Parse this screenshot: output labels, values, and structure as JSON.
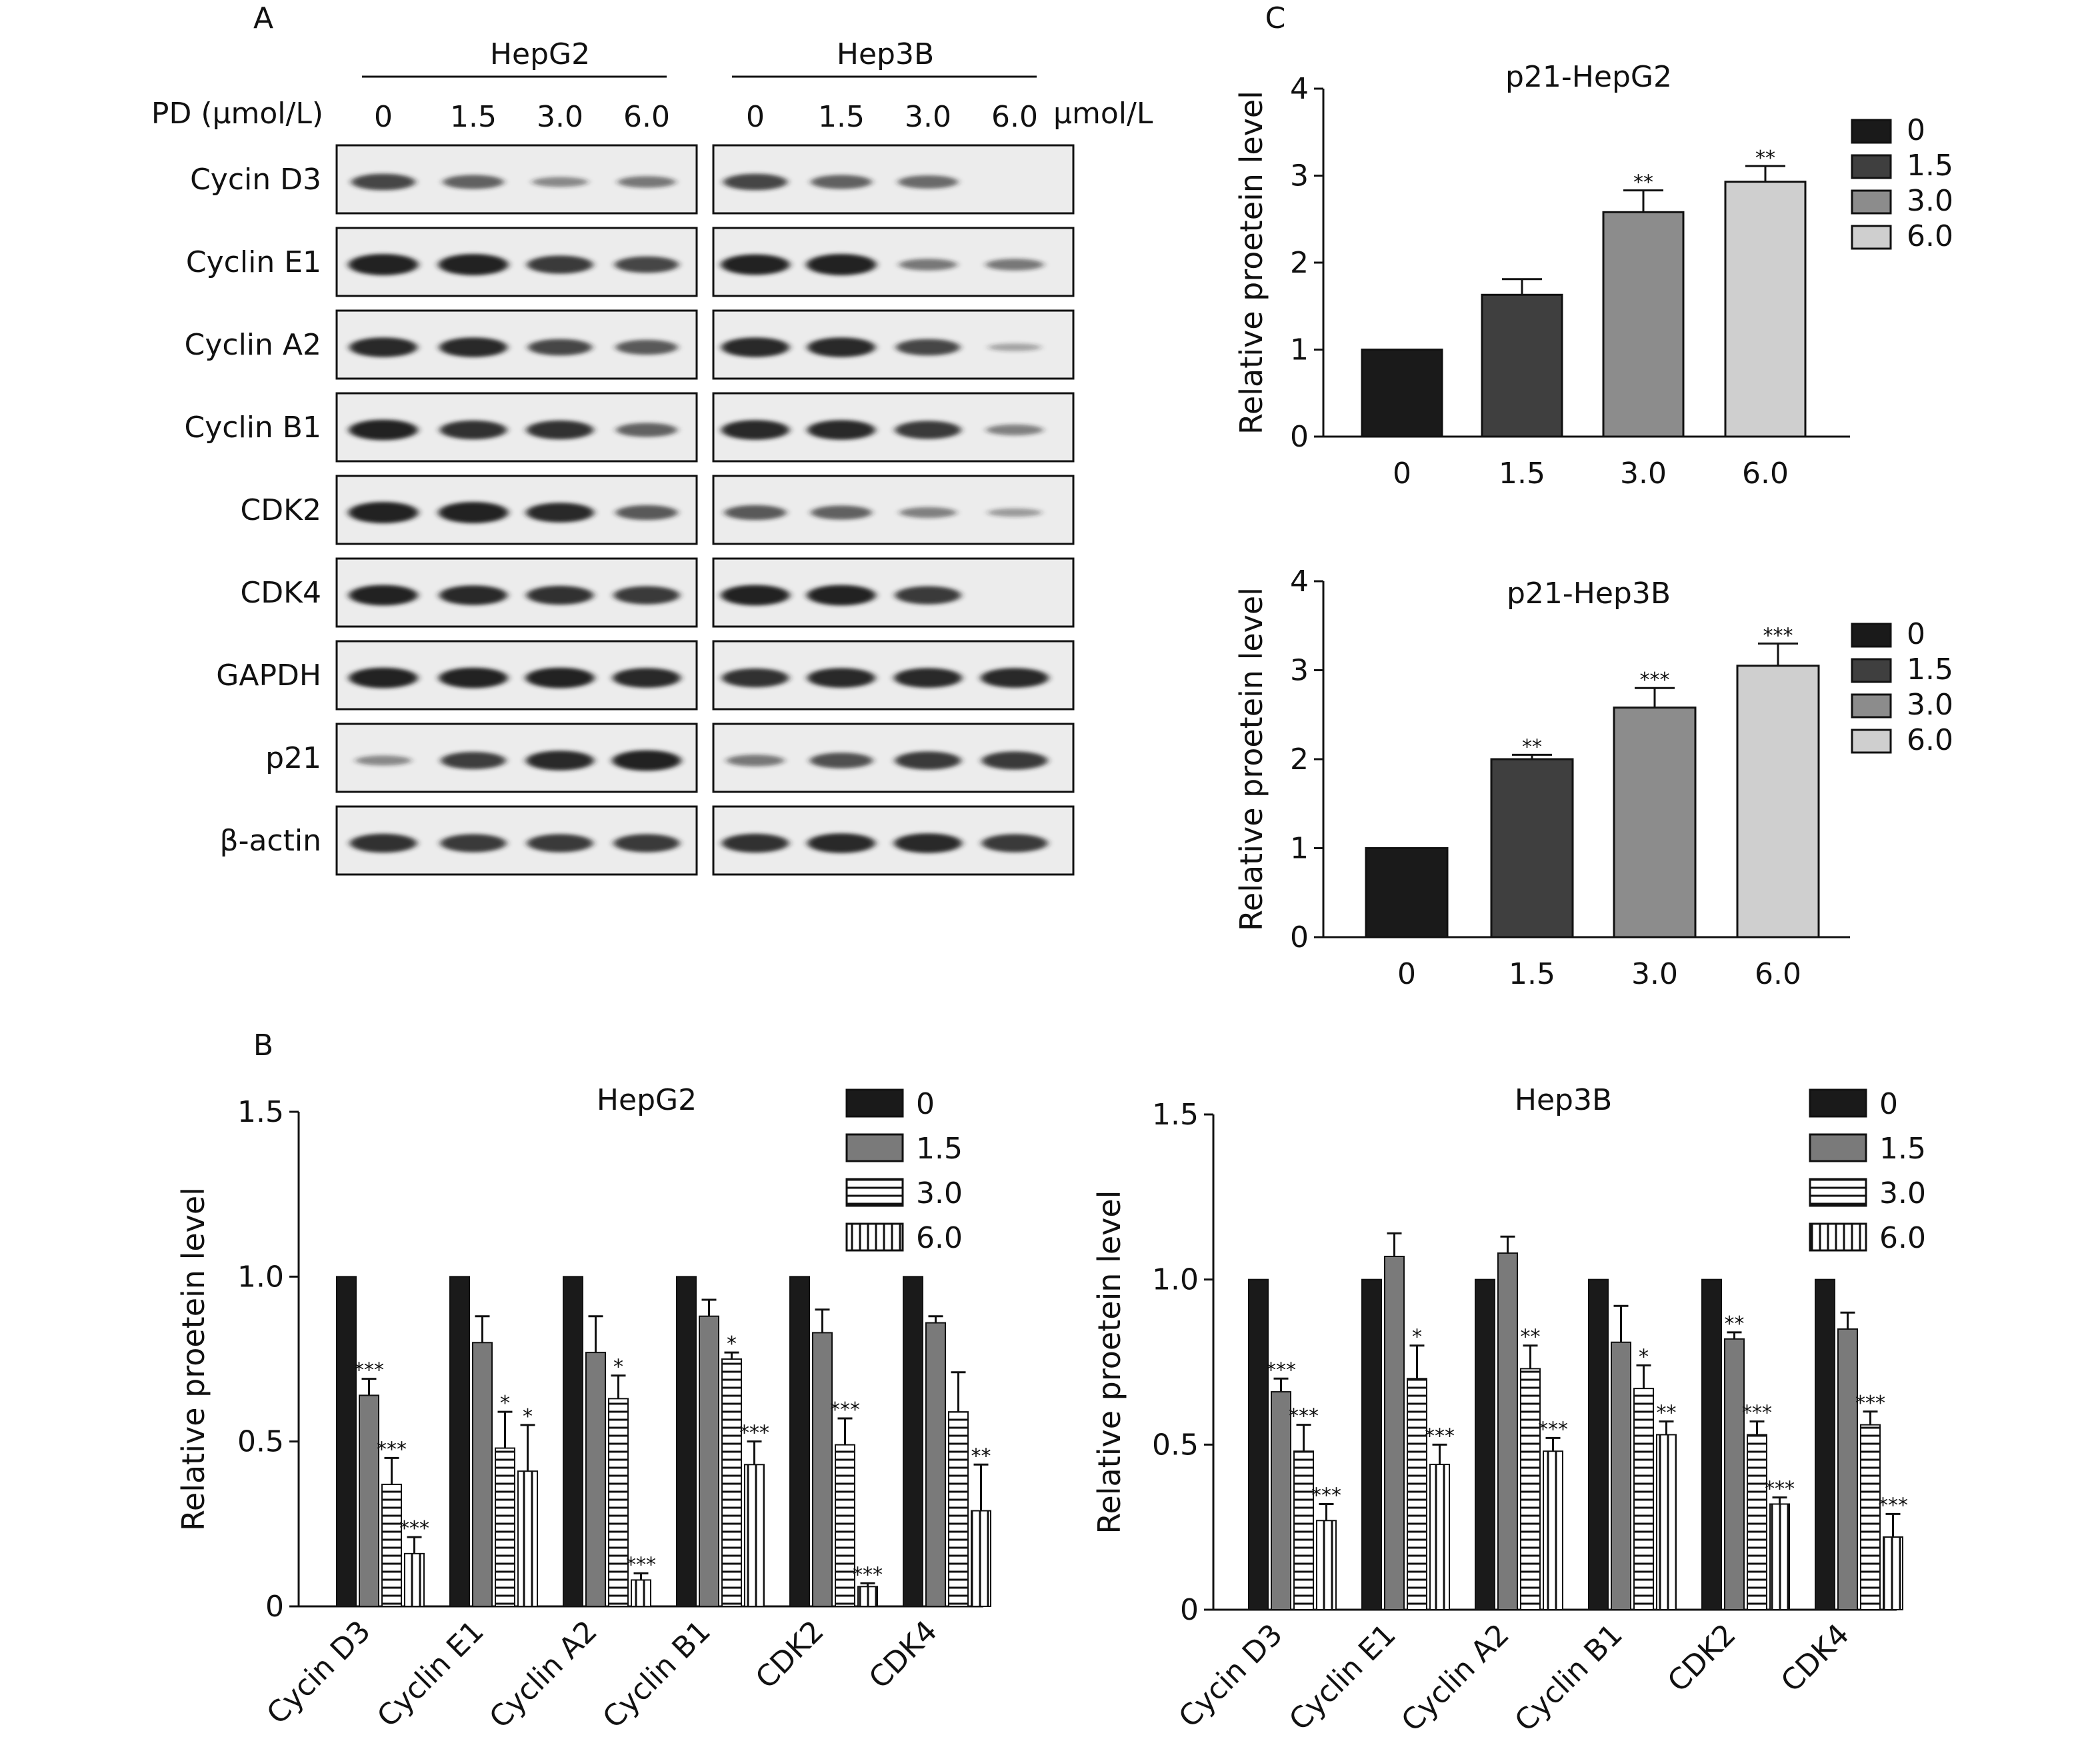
{
  "figure": {
    "panel_a_label": "A",
    "panel_b_label": "B",
    "panel_c_label": "C"
  },
  "colors": {
    "d0": "#1a1a1a",
    "d1_5_b": "#7a7a7a",
    "d1_5_c": "#3f3f3f",
    "d3_0_c": "#8c8c8c",
    "d6_0_c": "#cfcfcf",
    "axis": "#111111",
    "blot_band": "#222222"
  },
  "western_blot": {
    "pd_label": "PD (μmol/L)",
    "unit_label": "μmol/L",
    "groups": [
      {
        "name": "HepG2",
        "doses": [
          "0",
          "1.5",
          "3.0",
          "6.0"
        ]
      },
      {
        "name": "Hep3B",
        "doses": [
          "0",
          "1.5",
          "3.0",
          "6.0"
        ]
      }
    ],
    "rows": [
      {
        "label": "Cycin D3",
        "hepg2": [
          0.7,
          0.55,
          0.3,
          0.4
        ],
        "hep3b": [
          0.7,
          0.55,
          0.5,
          0.0
        ]
      },
      {
        "label": "Cyclin E1",
        "hepg2": [
          1.0,
          1.0,
          0.8,
          0.7
        ],
        "hep3b": [
          0.95,
          1.0,
          0.4,
          0.4
        ]
      },
      {
        "label": "Cyclin A2",
        "hepg2": [
          0.9,
          0.9,
          0.7,
          0.6
        ],
        "hep3b": [
          0.9,
          0.9,
          0.7,
          0.15
        ]
      },
      {
        "label": "Cyclin B1",
        "hepg2": [
          0.95,
          0.85,
          0.85,
          0.55
        ],
        "hep3b": [
          0.9,
          0.9,
          0.8,
          0.35
        ]
      },
      {
        "label": "CDK2",
        "hepg2": [
          1.0,
          1.0,
          0.9,
          0.6
        ],
        "hep3b": [
          0.6,
          0.55,
          0.35,
          0.2
        ]
      },
      {
        "label": "CDK4",
        "hepg2": [
          0.95,
          0.9,
          0.85,
          0.8
        ],
        "hep3b": [
          0.95,
          0.95,
          0.8,
          0.0
        ]
      },
      {
        "label": "GAPDH",
        "hepg2": [
          0.95,
          0.95,
          0.95,
          0.9
        ],
        "hep3b": [
          0.85,
          0.9,
          0.9,
          0.9
        ]
      },
      {
        "label": "p21",
        "hepg2": [
          0.3,
          0.75,
          0.9,
          0.95
        ],
        "hep3b": [
          0.4,
          0.65,
          0.8,
          0.8
        ]
      },
      {
        "label": "β-actin",
        "hepg2": [
          0.85,
          0.8,
          0.8,
          0.8
        ],
        "hep3b": [
          0.85,
          0.9,
          0.9,
          0.8
        ]
      }
    ]
  },
  "chart_data": [
    {
      "id": "p21-hepg2",
      "type": "bar",
      "title": "p21-HepG2",
      "ylabel": "Relative proetein level",
      "ylim": [
        0,
        4
      ],
      "yticks": [
        "0",
        "1",
        "2",
        "3",
        "4"
      ],
      "categories": [
        "0",
        "1.5",
        "3.0",
        "6.0"
      ],
      "values": [
        1.0,
        1.63,
        2.58,
        2.93
      ],
      "errors": [
        0,
        0.18,
        0.25,
        0.18
      ],
      "significance": [
        "",
        "",
        "**",
        "**"
      ],
      "legend": [
        "0",
        "1.5",
        "3.0",
        "6.0"
      ],
      "legend_position": "right"
    },
    {
      "id": "p21-hep3b",
      "type": "bar",
      "title": "p21-Hep3B",
      "ylabel": "Relative proetein level",
      "ylim": [
        0,
        4
      ],
      "yticks": [
        "0",
        "1",
        "2",
        "3",
        "4"
      ],
      "categories": [
        "0",
        "1.5",
        "3.0",
        "6.0"
      ],
      "values": [
        1.0,
        2.0,
        2.58,
        3.05
      ],
      "errors": [
        0,
        0.05,
        0.22,
        0.25
      ],
      "significance": [
        "",
        "**",
        "***",
        "***"
      ],
      "legend": [
        "0",
        "1.5",
        "3.0",
        "6.0"
      ],
      "legend_position": "right"
    },
    {
      "id": "b-hepg2",
      "type": "bar",
      "title": "HepG2",
      "ylabel": "Relative proetein level",
      "ylim": [
        0,
        1.5
      ],
      "yticks": [
        "0",
        "0.5",
        "1.0",
        "1.5"
      ],
      "categories": [
        "Cycin D3",
        "Cyclin E1",
        "Cyclin A2",
        "Cyclin B1",
        "CDK2",
        "CDK4"
      ],
      "legend_position": "top-right",
      "series": [
        {
          "name": "0",
          "pattern": "solid-black",
          "values": [
            1.0,
            1.0,
            1.0,
            1.0,
            1.0,
            1.0
          ],
          "errors": [
            0,
            0,
            0,
            0,
            0,
            0
          ],
          "significance": [
            "",
            "",
            "",
            "",
            "",
            ""
          ]
        },
        {
          "name": "1.5",
          "pattern": "solid-gray",
          "values": [
            0.64,
            0.8,
            0.77,
            0.88,
            0.83,
            0.86
          ],
          "errors": [
            0.05,
            0.08,
            0.11,
            0.05,
            0.07,
            0.02
          ],
          "significance": [
            "***",
            "",
            "",
            "",
            "",
            ""
          ]
        },
        {
          "name": "3.0",
          "pattern": "horizontal-lines",
          "values": [
            0.37,
            0.48,
            0.63,
            0.75,
            0.49,
            0.59
          ],
          "errors": [
            0.08,
            0.11,
            0.07,
            0.02,
            0.08,
            0.12
          ],
          "significance": [
            "***",
            "*",
            "*",
            "*",
            "***",
            ""
          ]
        },
        {
          "name": "6.0",
          "pattern": "vertical-lines",
          "values": [
            0.16,
            0.41,
            0.08,
            0.43,
            0.06,
            0.29
          ],
          "errors": [
            0.05,
            0.14,
            0.02,
            0.07,
            0.01,
            0.14
          ],
          "significance": [
            "***",
            "*",
            "***",
            "***",
            "***",
            "**"
          ]
        }
      ]
    },
    {
      "id": "b-hep3b",
      "type": "bar",
      "title": "Hep3B",
      "ylabel": "Relative proetein level",
      "ylim": [
        0,
        1.5
      ],
      "yticks": [
        "0",
        "0.5",
        "1.0",
        "1.5"
      ],
      "categories": [
        "Cycin D3",
        "Cyclin E1",
        "Cyclin A2",
        "Cyclin B1",
        "CDK2",
        "CDK4"
      ],
      "legend_position": "top-right",
      "series": [
        {
          "name": "0",
          "pattern": "solid-black",
          "values": [
            1.0,
            1.0,
            1.0,
            1.0,
            1.0,
            1.0
          ],
          "errors": [
            0,
            0,
            0,
            0,
            0,
            0
          ],
          "significance": [
            "",
            "",
            "",
            "",
            "",
            ""
          ]
        },
        {
          "name": "1.5",
          "pattern": "solid-gray",
          "values": [
            0.66,
            1.07,
            1.08,
            0.81,
            0.82,
            0.85
          ],
          "errors": [
            0.04,
            0.07,
            0.05,
            0.11,
            0.02,
            0.05
          ],
          "significance": [
            "***",
            "",
            "",
            "",
            "**",
            ""
          ]
        },
        {
          "name": "3.0",
          "pattern": "horizontal-lines",
          "values": [
            0.48,
            0.7,
            0.73,
            0.67,
            0.53,
            0.56
          ],
          "errors": [
            0.08,
            0.1,
            0.07,
            0.07,
            0.04,
            0.04
          ],
          "significance": [
            "***",
            "*",
            "**",
            "*",
            "***",
            "***"
          ]
        },
        {
          "name": "6.0",
          "pattern": "vertical-lines",
          "values": [
            0.27,
            0.44,
            0.48,
            0.53,
            0.32,
            0.22
          ],
          "errors": [
            0.05,
            0.06,
            0.04,
            0.04,
            0.02,
            0.07
          ],
          "significance": [
            "***",
            "***",
            "***",
            "**",
            "***",
            "***"
          ]
        }
      ]
    }
  ]
}
